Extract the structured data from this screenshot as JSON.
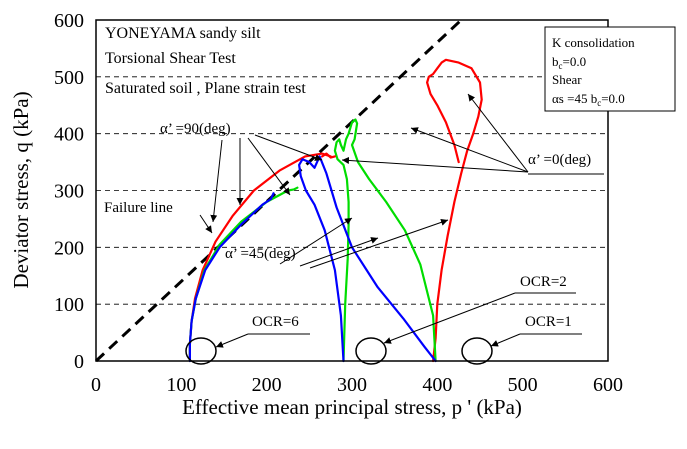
{
  "chart_data": {
    "type": "line",
    "title": "",
    "xlabel": "Effective mean principal stress, p ' (kPa)",
    "ylabel": "Deviator stress, q (kPa)",
    "xlim": [
      0,
      600
    ],
    "ylim": [
      0,
      600
    ],
    "xticks": [
      "0",
      "100",
      "200",
      "300",
      "400",
      "500",
      "600"
    ],
    "yticks": [
      "0",
      "100",
      "200",
      "300",
      "400",
      "500",
      "600"
    ],
    "grid": "horizontal dashed",
    "info_lines": [
      "YONEYAMA sandy silt",
      "Torsional Shear Test",
      "Saturated soil , Plane strain test"
    ],
    "legend_box": {
      "line1": "K consolidation",
      "line2_main": "b",
      "line2_sub": "c",
      "line2_rest": "=0.0",
      "line3": "Shear",
      "line4_main": "αs =45  b",
      "line4_sub": "c",
      "line4_rest": "=0.0"
    },
    "failure_line": {
      "label": "Failure line",
      "x": [
        0,
        428
      ],
      "y": [
        0,
        600
      ]
    },
    "annotations": {
      "alpha90": "α’ =90(deg)",
      "alpha0": "α’ =0(deg)",
      "alpha45": "α’ =45(deg)",
      "ocr1": "OCR=1",
      "ocr2": "OCR=2",
      "ocr6": "OCR=6"
    },
    "series": [
      {
        "color": "#ff0000",
        "x": [
          110,
          110,
          112,
          116,
          125,
          140,
          160,
          185,
          215,
          245,
          265,
          275
        ],
        "y": [
          0,
          30,
          70,
          110,
          160,
          210,
          255,
          300,
          335,
          360,
          365,
          360
        ]
      },
      {
        "color": "#00dd00",
        "x": [
          110,
          110,
          112,
          117,
          127,
          145,
          170,
          200,
          225,
          232,
          236
        ],
        "y": [
          0,
          30,
          70,
          110,
          160,
          205,
          245,
          280,
          300,
          302,
          305
        ]
      },
      {
        "color": "#0000ff",
        "x": [
          110,
          110,
          112,
          117,
          128,
          145,
          170,
          195,
          205,
          208
        ],
        "y": [
          0,
          30,
          70,
          110,
          160,
          200,
          240,
          275,
          285,
          295
        ]
      },
      {
        "color": "#ff0000",
        "x": [
          395,
          398,
          400,
          405,
          412,
          420,
          428,
          435,
          442,
          448,
          452,
          450,
          440,
          425,
          410,
          405,
          400,
          395,
          390,
          388,
          392,
          400,
          410,
          420,
          425
        ],
        "y": [
          0,
          40,
          100,
          160,
          220,
          280,
          330,
          370,
          400,
          430,
          460,
          490,
          515,
          525,
          530,
          525,
          515,
          505,
          500,
          490,
          470,
          450,
          420,
          380,
          350
        ]
      },
      {
        "color": "#00dd00",
        "x": [
          290,
          292,
          295,
          296,
          296,
          294,
          290,
          283,
          280,
          282,
          285,
          287,
          290,
          293,
          296,
          300,
          304,
          306,
          303,
          300,
          307,
          320,
          340,
          362,
          380,
          395,
          398
        ],
        "y": [
          0,
          100,
          180,
          240,
          280,
          320,
          345,
          355,
          370,
          385,
          390,
          380,
          370,
          390,
          400,
          420,
          425,
          418,
          390,
          380,
          350,
          320,
          280,
          230,
          170,
          80,
          0
        ]
      },
      {
        "color": "#0000ff",
        "x": [
          290,
          287,
          280,
          268,
          256,
          246,
          240,
          238,
          242,
          250,
          256,
          262,
          270,
          282,
          300,
          330,
          360,
          385,
          398
        ],
        "y": [
          0,
          80,
          160,
          230,
          275,
          300,
          325,
          345,
          355,
          350,
          340,
          360,
          330,
          270,
          200,
          130,
          75,
          25,
          0
        ]
      },
      {
        "color": "#ff0000",
        "x": [
          265,
          270,
          275,
          280
        ],
        "y": [
          360,
          365,
          358,
          360
        ]
      }
    ]
  }
}
